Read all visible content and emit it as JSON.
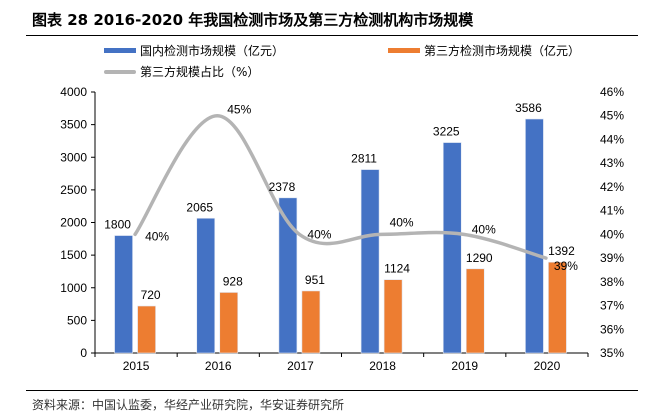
{
  "header": {
    "title": "图表 28 2016-2020 年我国检测市场及第三方检测机构市场规模"
  },
  "footer": {
    "source": "资料来源：中国认监委，华经产业研究院，华安证券研究所"
  },
  "colors": {
    "domestic": "#4472C4",
    "third_party": "#ED7D31",
    "share": "#B4B4B4",
    "axis": "#000000"
  },
  "chart_data": {
    "type": "bar",
    "title": "图表 28 2016-2020 年我国检测市场及第三方检测机构市场规模",
    "categories": [
      "2015",
      "2016",
      "2017",
      "2018",
      "2019",
      "2020"
    ],
    "series": [
      {
        "name": "国内检测市场规模（亿元）",
        "type": "bar",
        "axis": "left",
        "values": [
          1800,
          2065,
          2378,
          2811,
          3225,
          3586
        ],
        "labels": [
          "1800",
          "2065",
          "2378",
          "2811",
          "3225",
          "3586"
        ]
      },
      {
        "name": "第三方检测市场规模（亿元）",
        "type": "bar",
        "axis": "left",
        "values": [
          720,
          928,
          951,
          1124,
          1290,
          1392
        ],
        "labels": [
          "720",
          "928",
          "951",
          "1124",
          "1290",
          "1392"
        ]
      },
      {
        "name": "第三方规模占比（%）",
        "type": "line",
        "smooth": true,
        "axis": "right",
        "values": [
          40,
          45,
          40,
          40,
          40,
          39
        ],
        "labels": [
          "40%",
          "45%",
          "40%",
          "40%",
          "40%",
          "39%"
        ]
      }
    ],
    "y_left": {
      "ylim": [
        0,
        4000
      ],
      "ticks": [
        "0",
        "500",
        "1000",
        "1500",
        "2000",
        "2500",
        "3000",
        "3500",
        "4000"
      ]
    },
    "y_right": {
      "ylim": [
        35,
        46
      ],
      "ticks": [
        "35%",
        "36%",
        "37%",
        "38%",
        "39%",
        "40%",
        "41%",
        "42%",
        "43%",
        "44%",
        "45%",
        "46%"
      ]
    },
    "xlabel": "",
    "ylabel": "",
    "grid": false,
    "legend_position": "top"
  }
}
